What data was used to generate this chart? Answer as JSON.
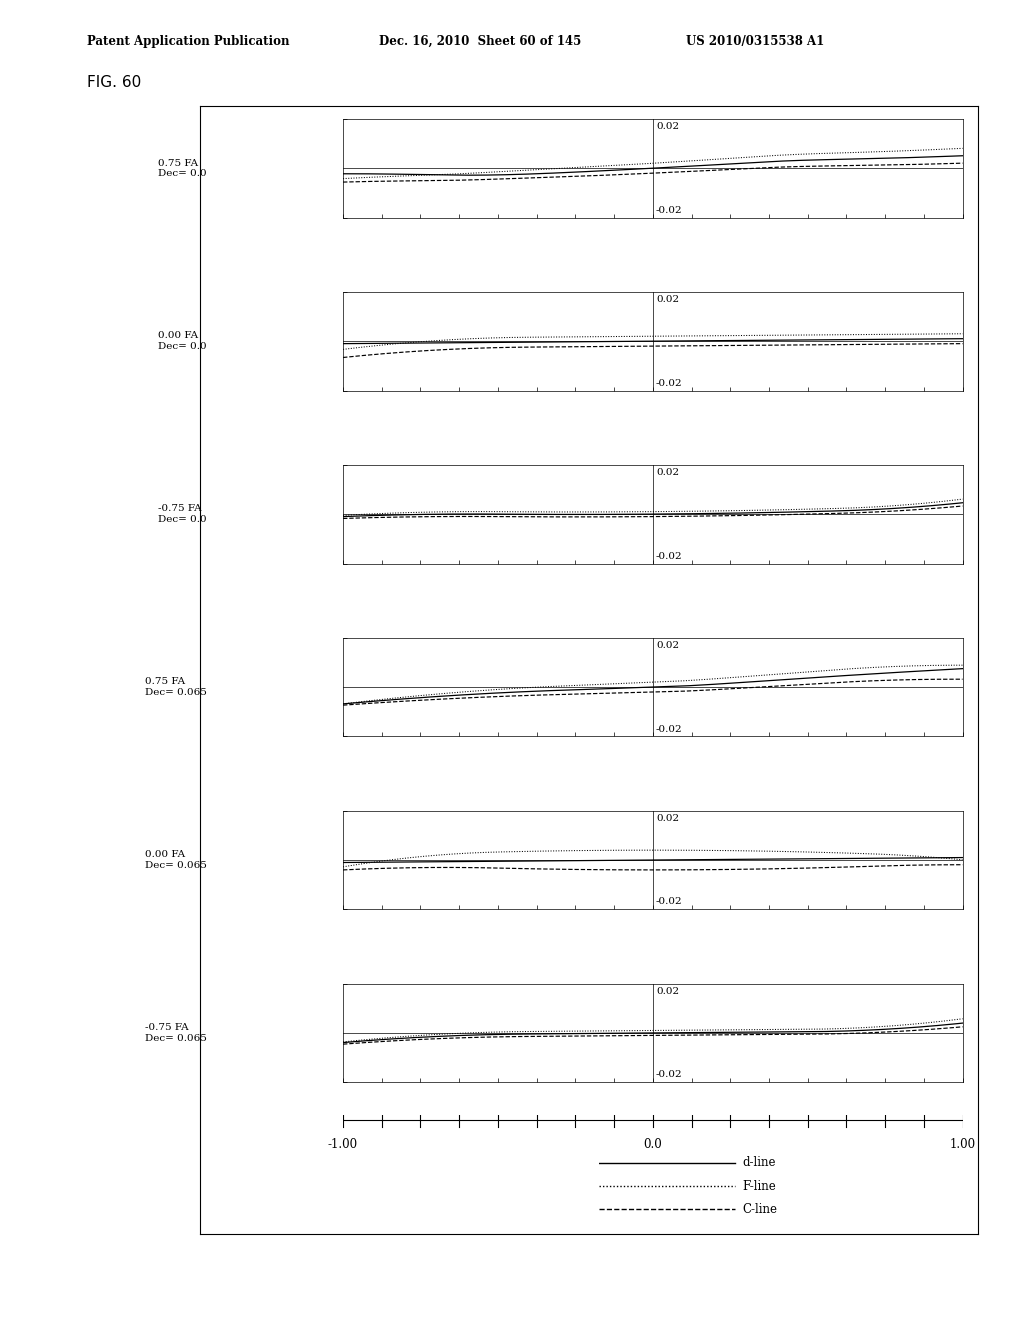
{
  "figure_label": "FIG. 60",
  "header_left": "Patent Application Publication",
  "header_center": "Dec. 16, 2010  Sheet 60 of 145",
  "header_right": "US 2010/0315538 A1",
  "subplots": [
    {
      "label": "0.75 FA\nDec= 0.0"
    },
    {
      "label": "0.00 FA\nDec= 0.0"
    },
    {
      "label": "-0.75 FA\nDec= 0.0"
    },
    {
      "label": "0.75 FA\nDec= 0.065"
    },
    {
      "label": "0.00 FA\nDec= 0.065"
    },
    {
      "label": "-0.75 FA\nDec= 0.065"
    }
  ],
  "xlim": [
    -1.0,
    1.0
  ],
  "ylim": [
    -0.02,
    0.02
  ],
  "legend_items": [
    "d-line",
    "F-line",
    "C-line"
  ],
  "line_styles": [
    "-",
    ":",
    "--"
  ],
  "background_color": "white"
}
